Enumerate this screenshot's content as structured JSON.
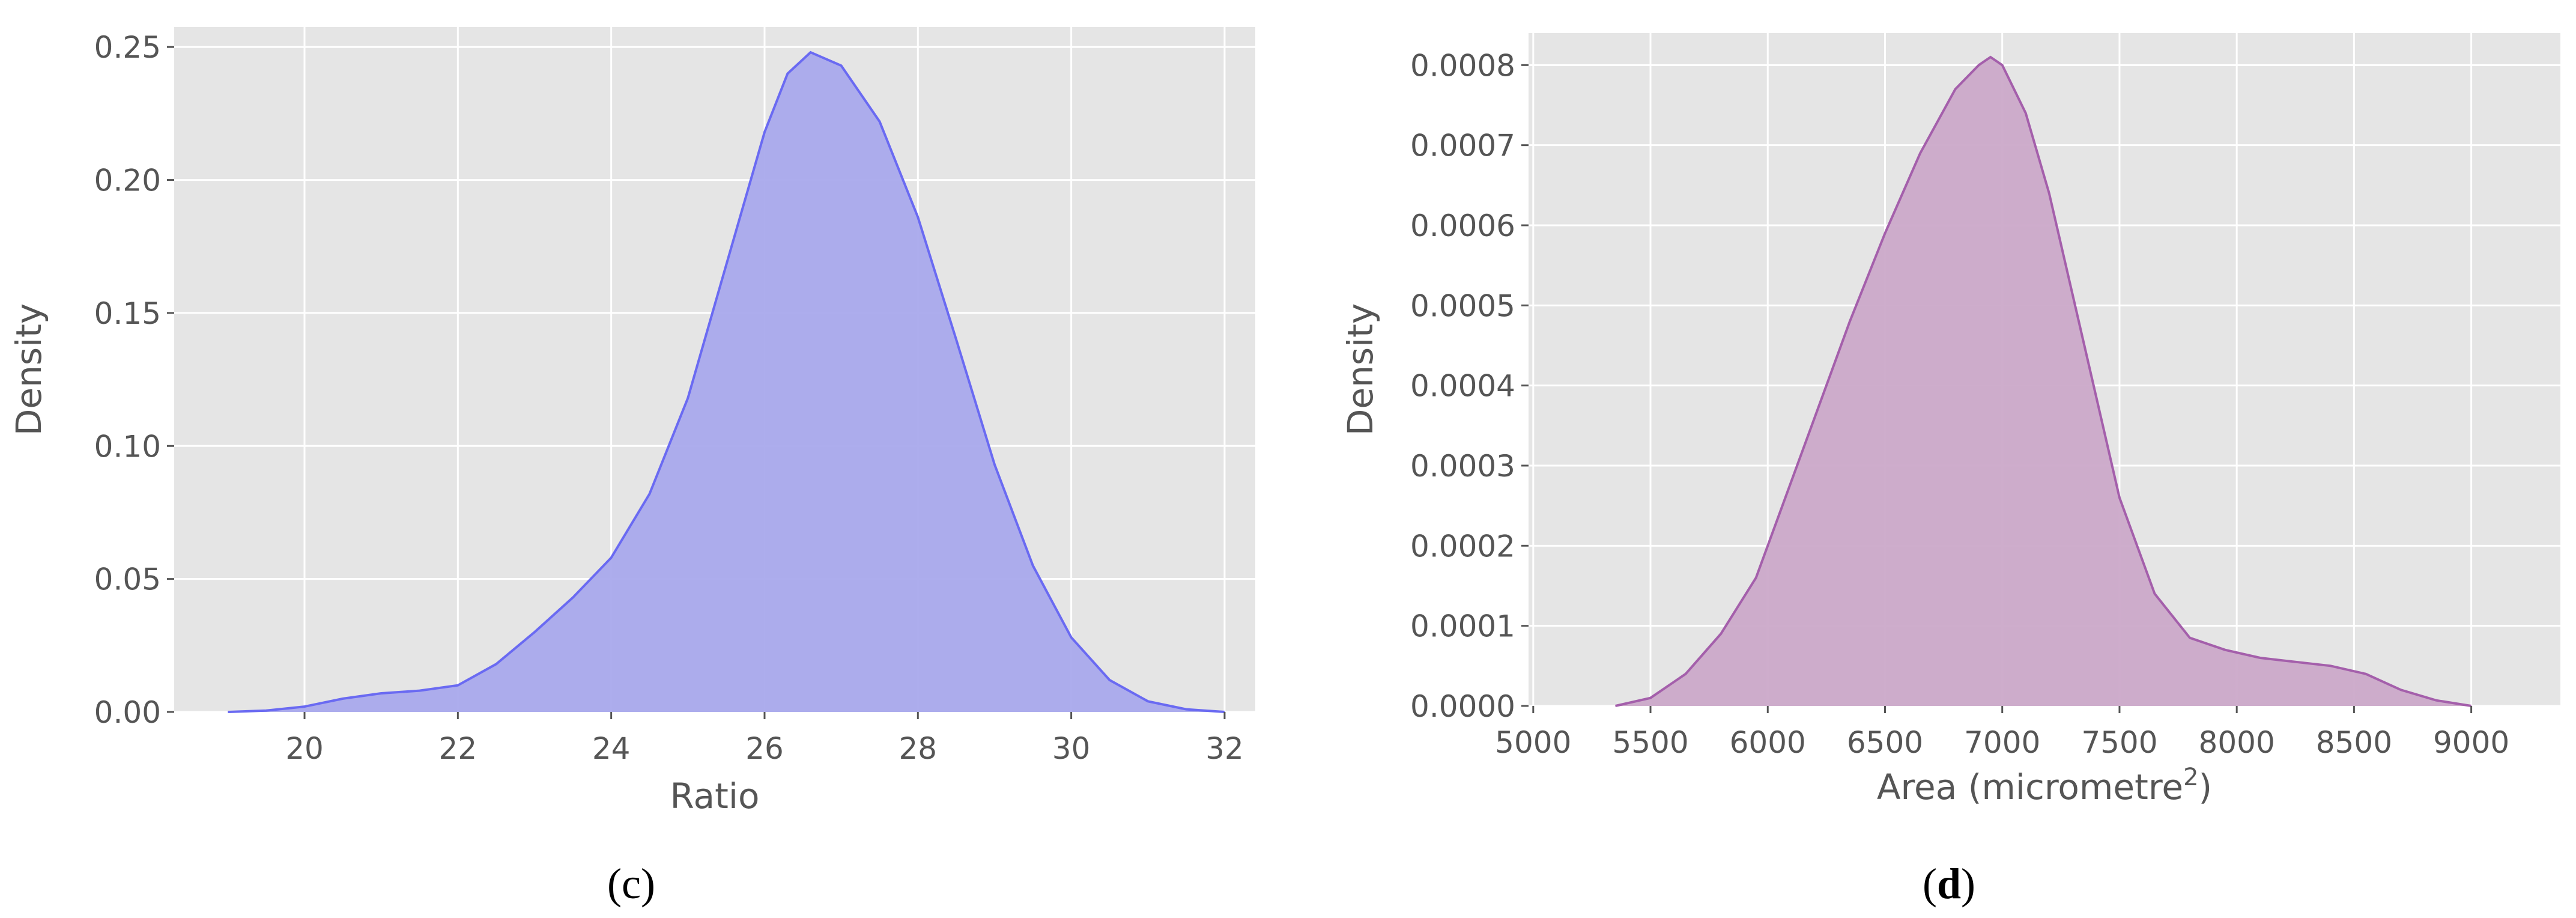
{
  "chart_data": [
    {
      "type": "area",
      "panel_label": "c",
      "title": "",
      "xlabel": "Ratio",
      "ylabel": "Density",
      "xlim": [
        18.3,
        32.4
      ],
      "ylim": [
        0,
        0.2575
      ],
      "xticks": [
        20,
        22,
        24,
        26,
        28,
        30,
        32
      ],
      "xtick_labels": [
        "20",
        "22",
        "24",
        "26",
        "28",
        "30",
        "32"
      ],
      "yticks": [
        0,
        0.05,
        0.1,
        0.15,
        0.2,
        0.25
      ],
      "ytick_labels": [
        "0.00",
        "0.05",
        "0.10",
        "0.15",
        "0.20",
        "0.25"
      ],
      "grid": true,
      "background": "#e5e5e5",
      "fill_color": "#a9a9ec",
      "line_color": "#6a6af2",
      "series": [
        {
          "x": [
            19.0,
            19.5,
            20.0,
            20.5,
            21.0,
            21.5,
            22.0,
            22.5,
            23.0,
            23.5,
            24.0,
            24.5,
            25.0,
            25.5,
            26.0,
            26.3,
            26.6,
            27.0,
            27.5,
            28.0,
            28.5,
            29.0,
            29.5,
            30.0,
            30.5,
            31.0,
            31.5,
            32.0
          ],
          "y": [
            0.0,
            0.0005,
            0.002,
            0.005,
            0.007,
            0.008,
            0.01,
            0.018,
            0.03,
            0.043,
            0.058,
            0.082,
            0.118,
            0.168,
            0.218,
            0.24,
            0.248,
            0.243,
            0.222,
            0.186,
            0.14,
            0.093,
            0.055,
            0.028,
            0.012,
            0.004,
            0.001,
            0.0
          ]
        }
      ]
    },
    {
      "type": "area",
      "panel_label": "d",
      "title": "",
      "xlabel": "Area (micrometre",
      "xlabel_superscript": "2",
      "xlabel_suffix": ")",
      "ylabel": "Density",
      "xlim": [
        4980,
        9380
      ],
      "ylim": [
        0,
        0.00084
      ],
      "xticks": [
        5000,
        5500,
        6000,
        6500,
        7000,
        7500,
        8000,
        8500,
        9000
      ],
      "xtick_labels": [
        "5000",
        "5500",
        "6000",
        "6500",
        "7000",
        "7500",
        "8000",
        "8500",
        "9000"
      ],
      "yticks": [
        0,
        0.0001,
        0.0002,
        0.0003,
        0.0004,
        0.0005,
        0.0006,
        0.0007,
        0.0008
      ],
      "ytick_labels": [
        "0.0000",
        "0.0001",
        "0.0002",
        "0.0003",
        "0.0004",
        "0.0005",
        "0.0006",
        "0.0007",
        "0.0008"
      ],
      "grid": true,
      "background": "#e5e5e5",
      "fill_color": "#cba9c9",
      "line_color": "#a45fab",
      "series": [
        {
          "x": [
            5350,
            5500,
            5650,
            5800,
            5950,
            6050,
            6200,
            6350,
            6500,
            6650,
            6800,
            6900,
            6950,
            7000,
            7100,
            7200,
            7350,
            7500,
            7650,
            7800,
            7950,
            8100,
            8250,
            8400,
            8550,
            8700,
            8850,
            9000
          ],
          "y": [
            0.0,
            1e-05,
            4e-05,
            9e-05,
            0.00016,
            0.00024,
            0.00036,
            0.00048,
            0.00059,
            0.00069,
            0.00077,
            0.0008,
            0.00081,
            0.0008,
            0.00074,
            0.00064,
            0.00045,
            0.00026,
            0.00014,
            8.5e-05,
            7e-05,
            6e-05,
            5.5e-05,
            5e-05,
            4e-05,
            2e-05,
            7e-06,
            0.0
          ]
        }
      ]
    }
  ],
  "captions": {
    "c": "c",
    "d": "d"
  }
}
